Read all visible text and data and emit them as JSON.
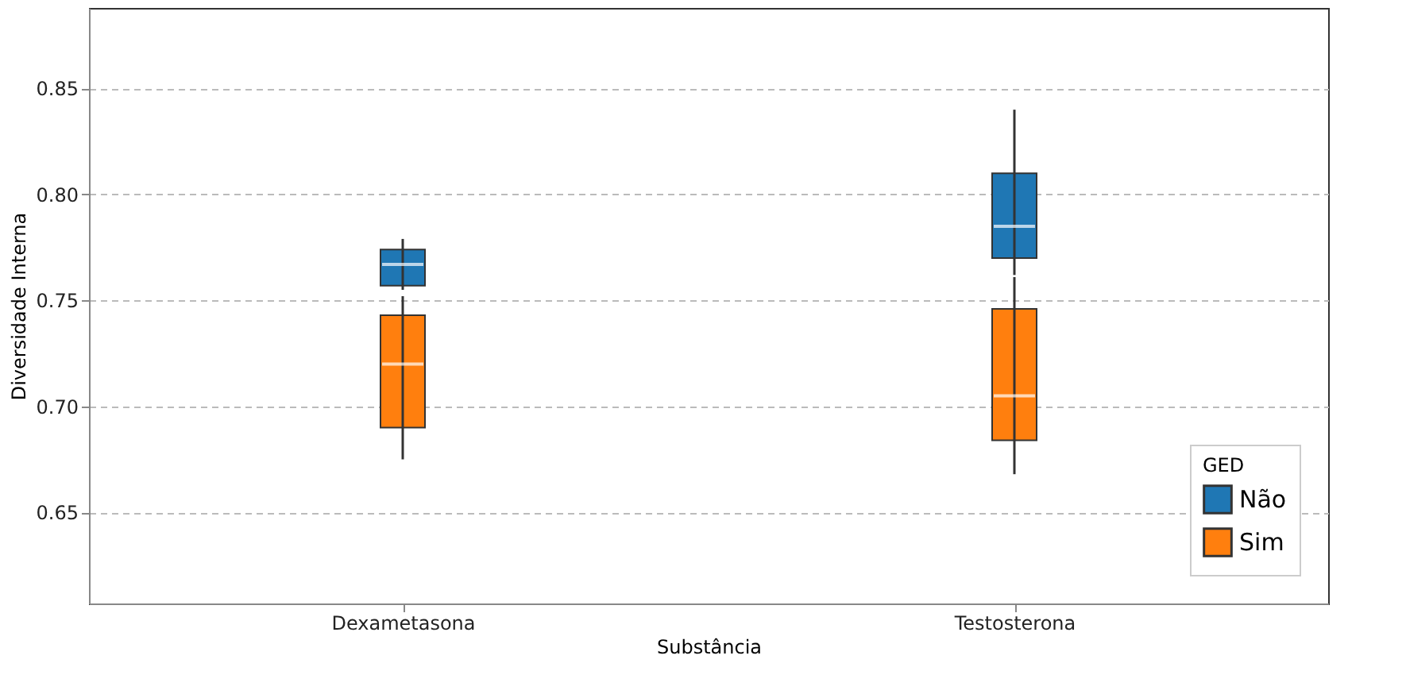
{
  "chart_data": {
    "type": "box",
    "xlabel": "Substância",
    "ylabel": "Diversidade Interna",
    "legend_title": "GED",
    "categories": [
      "Dexametasona",
      "Testosterona"
    ],
    "series": [
      {
        "name": "Não",
        "color": "#1f77b4",
        "boxes": [
          {
            "low": 0.755,
            "q1": 0.757,
            "median": 0.767,
            "q3": 0.774,
            "high": 0.779
          },
          {
            "low": 0.762,
            "q1": 0.77,
            "median": 0.785,
            "q3": 0.81,
            "high": 0.84
          }
        ]
      },
      {
        "name": "Sim",
        "color": "#ff7f0e",
        "boxes": [
          {
            "low": 0.675,
            "q1": 0.69,
            "median": 0.72,
            "q3": 0.743,
            "high": 0.752
          },
          {
            "low": 0.668,
            "q1": 0.684,
            "median": 0.705,
            "q3": 0.746,
            "high": 0.761
          }
        ]
      }
    ],
    "ylim": [
      0.607,
      0.888
    ],
    "yticks": [
      {
        "value": 0.65,
        "label": "0.65"
      },
      {
        "value": 0.7,
        "label": "0.70"
      },
      {
        "value": 0.75,
        "label": "0.75"
      },
      {
        "value": 0.8,
        "label": "0.80"
      },
      {
        "value": 0.85,
        "label": "0.85"
      }
    ],
    "grid": "y",
    "legend": "bottom right"
  }
}
